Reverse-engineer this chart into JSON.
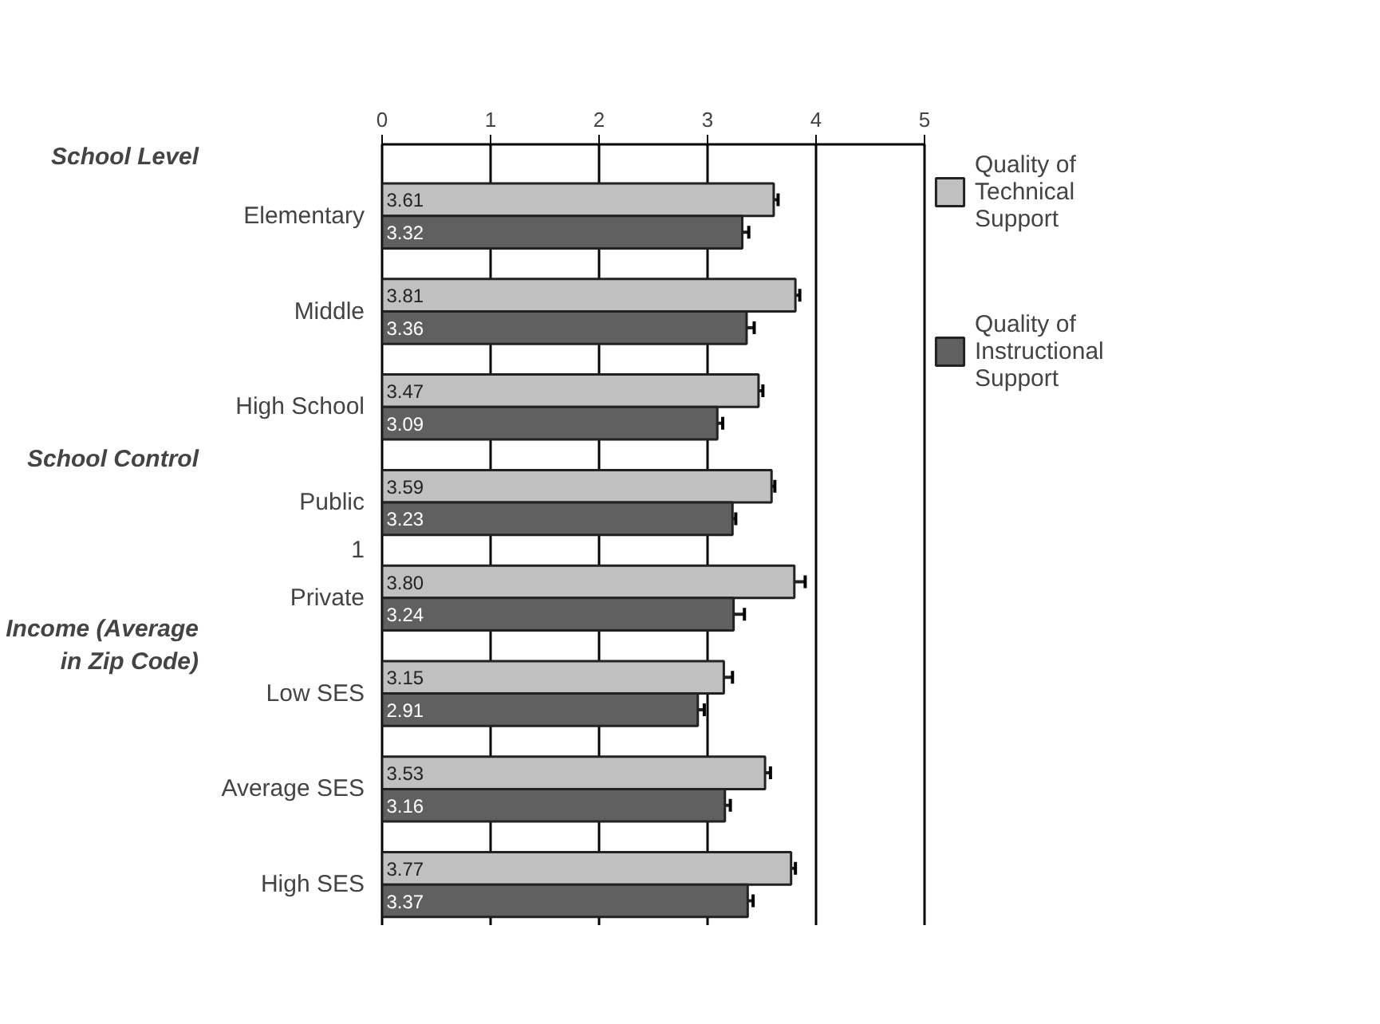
{
  "chart_data": {
    "type": "bar",
    "orientation": "horizontal",
    "categories": [
      "Elementary",
      "Middle",
      "High School",
      "Public",
      "Private",
      "Low SES",
      "Average SES",
      "High SES"
    ],
    "series": [
      {
        "name": "Quality of Technical Support",
        "color": "#c0c0c0",
        "values": [
          3.61,
          3.81,
          3.47,
          3.59,
          3.8,
          3.15,
          3.53,
          3.77
        ],
        "value_labels": [
          "3.61",
          "3.81",
          "3.47",
          "3.59",
          "3.80",
          "3.15",
          "3.53",
          "3.77"
        ],
        "errors": [
          0.04,
          0.04,
          0.04,
          0.03,
          0.1,
          0.08,
          0.05,
          0.04
        ]
      },
      {
        "name": "Quality of Instructional Support",
        "color": "#606060",
        "values": [
          3.32,
          3.36,
          3.09,
          3.23,
          3.24,
          2.91,
          3.16,
          3.37
        ],
        "value_labels": [
          "3.32",
          "3.36",
          "3.09",
          "3.23",
          "3.24",
          "2.91",
          "3.16",
          "3.37"
        ],
        "errors": [
          0.06,
          0.07,
          0.05,
          0.03,
          0.1,
          0.06,
          0.05,
          0.05
        ]
      }
    ],
    "xlim": [
      0,
      5
    ],
    "xticks": [
      0,
      1,
      2,
      3,
      4,
      5
    ],
    "grid": "x",
    "legend": "right",
    "annotations": [
      "School Level",
      "School Control",
      "1",
      "Income (Average in Zip Code)"
    ]
  }
}
